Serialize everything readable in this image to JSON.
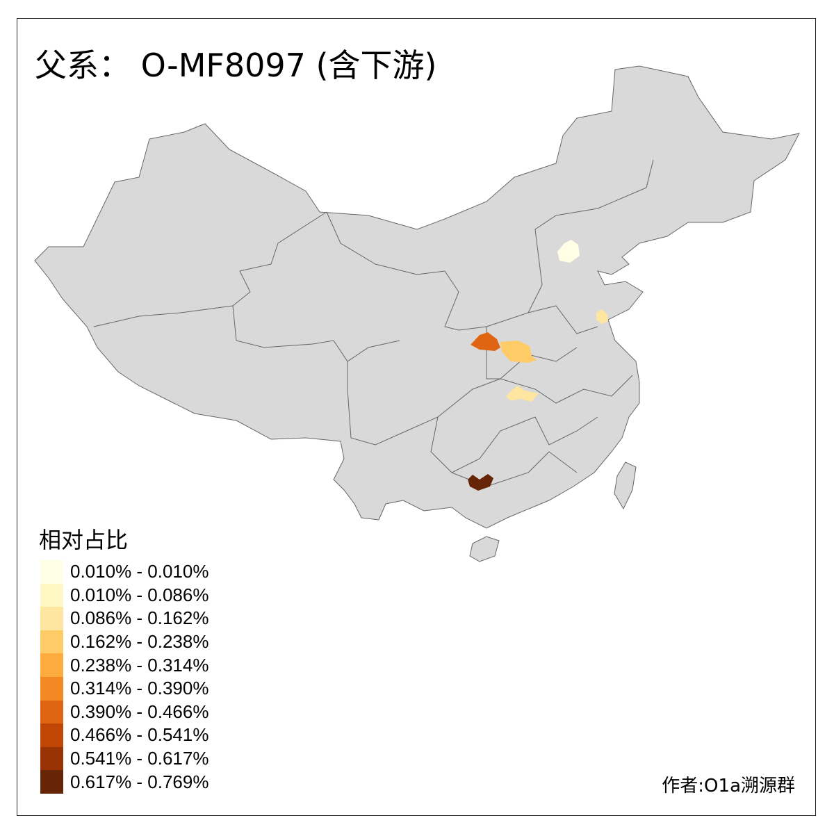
{
  "title": "父系： O-MF8097 (含下游)",
  "legend": {
    "title": "相对占比",
    "items": [
      {
        "label": "0.010% - 0.010%",
        "color": "#FFFFE5"
      },
      {
        "label": "0.010% - 0.086%",
        "color": "#FFF7C4"
      },
      {
        "label": "0.086% - 0.162%",
        "color": "#FEE6A0"
      },
      {
        "label": "0.162% - 0.238%",
        "color": "#FECB67"
      },
      {
        "label": "0.238% - 0.314%",
        "color": "#FDAB3E"
      },
      {
        "label": "0.314% - 0.390%",
        "color": "#F38923"
      },
      {
        "label": "0.390% - 0.466%",
        "color": "#E06512"
      },
      {
        "label": "0.466% - 0.541%",
        "color": "#C04606"
      },
      {
        "label": "0.541% - 0.617%",
        "color": "#993205"
      },
      {
        "label": "0.617% - 0.769%",
        "color": "#662506"
      }
    ]
  },
  "map": {
    "base_color": "#D9D9D9",
    "border_color": "#666666"
  },
  "credit": "作者:O1a溯源群"
}
